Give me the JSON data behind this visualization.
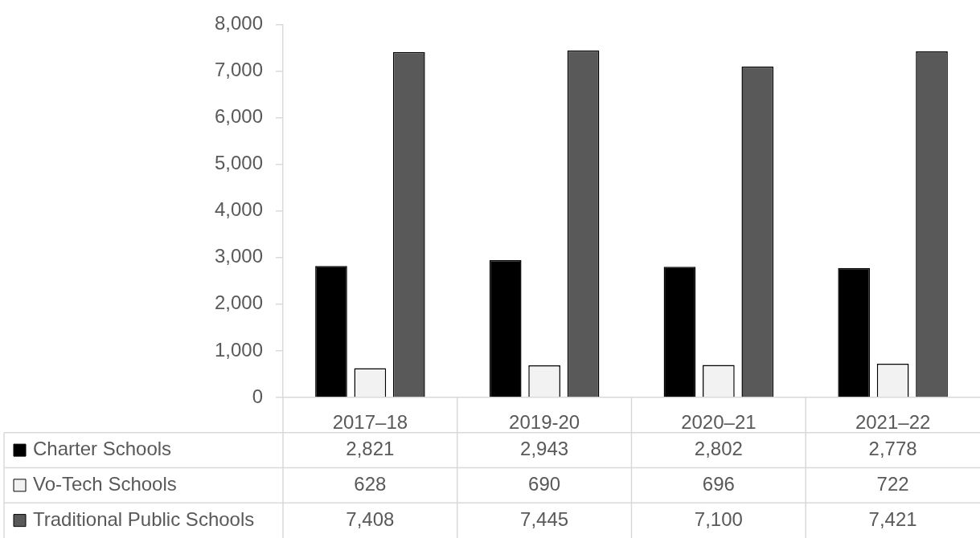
{
  "chart_data": {
    "type": "bar",
    "categories": [
      "2017–18",
      "2019-20",
      "2020–21",
      "2021–22"
    ],
    "series": [
      {
        "name": "Charter Schools",
        "color": "#000000",
        "values": [
          2821,
          2943,
          2802,
          2778
        ],
        "value_labels": [
          "2,821",
          "2,943",
          "2,802",
          "2,778"
        ]
      },
      {
        "name": "Vo-Tech Schools",
        "color": "#f2f2f2",
        "values": [
          628,
          690,
          696,
          722
        ],
        "value_labels": [
          "628",
          "690",
          "696",
          "722"
        ]
      },
      {
        "name": "Traditional Public Schools",
        "color": "#595959",
        "values": [
          7408,
          7445,
          7100,
          7421
        ],
        "value_labels": [
          "7,408",
          "7,445",
          "7,100",
          "7,421"
        ]
      }
    ],
    "ylim": [
      0,
      8000
    ],
    "yticks": [
      {
        "value": 0,
        "label": "0"
      },
      {
        "value": 1000,
        "label": "1,000"
      },
      {
        "value": 2000,
        "label": "2,000"
      },
      {
        "value": 3000,
        "label": "3,000"
      },
      {
        "value": 4000,
        "label": "4,000"
      },
      {
        "value": 5000,
        "label": "5,000"
      },
      {
        "value": 6000,
        "label": "6,000"
      },
      {
        "value": 7000,
        "label": "7,000"
      },
      {
        "value": 8000,
        "label": "8,000"
      }
    ],
    "grid": false,
    "legend": "bottom"
  }
}
